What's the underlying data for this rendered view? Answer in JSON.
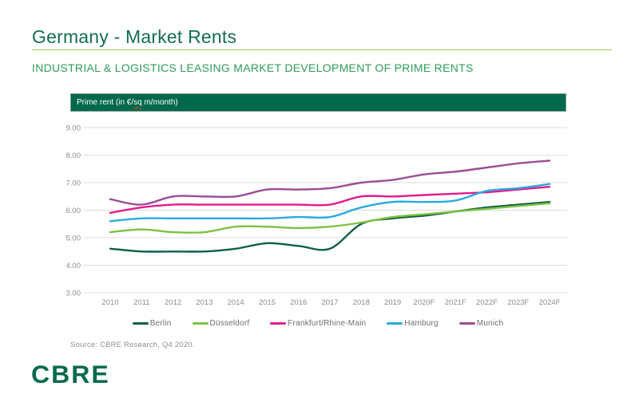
{
  "page": {
    "title": "Germany - Market Rents",
    "subtitle": "INDUSTRIAL & LOGISTICS LEASING MARKET DEVELOPMENT OF PRIME RENTS",
    "source": "Source: CBRE Research, Q4 2020.",
    "logo": "CBRE"
  },
  "chart_header": {
    "label_prefix": "Prime rent (in €/",
    "label_sq": "sq",
    "label_suffix": " m/month)"
  },
  "chart_data": {
    "type": "line",
    "title": "Prime rent (in €/sq m/month)",
    "x": [
      "2010",
      "2011",
      "2012",
      "2013",
      "2014",
      "2015",
      "2016",
      "2017",
      "2018",
      "2019",
      "2020F",
      "2021F",
      "2022F",
      "2023F",
      "2024F"
    ],
    "series": [
      {
        "name": "Berlin",
        "color": "#0e5f41",
        "values": [
          4.6,
          4.5,
          4.5,
          4.5,
          4.6,
          4.8,
          4.7,
          4.6,
          5.5,
          5.7,
          5.8,
          5.95,
          6.1,
          6.2,
          6.3
        ]
      },
      {
        "name": "Düsseldorf",
        "color": "#7cc242",
        "values": [
          5.2,
          5.3,
          5.2,
          5.2,
          5.4,
          5.4,
          5.35,
          5.4,
          5.55,
          5.75,
          5.85,
          5.95,
          6.05,
          6.15,
          6.25
        ]
      },
      {
        "name": "Frankfurt/Rhine-Main",
        "color": "#e41a8d",
        "values": [
          5.9,
          6.1,
          6.2,
          6.2,
          6.2,
          6.2,
          6.2,
          6.2,
          6.5,
          6.5,
          6.55,
          6.6,
          6.65,
          6.75,
          6.85
        ]
      },
      {
        "name": "Hamburg",
        "color": "#2aaade",
        "values": [
          5.6,
          5.7,
          5.7,
          5.7,
          5.7,
          5.7,
          5.75,
          5.75,
          6.1,
          6.3,
          6.3,
          6.35,
          6.7,
          6.8,
          6.95
        ]
      },
      {
        "name": "Munich",
        "color": "#9d4b97",
        "values": [
          6.4,
          6.2,
          6.5,
          6.5,
          6.5,
          6.75,
          6.75,
          6.8,
          7.0,
          7.1,
          7.3,
          7.4,
          7.55,
          7.7,
          7.8
        ]
      }
    ],
    "ylim": [
      3.0,
      9.0
    ],
    "ytick_labels": [
      "9.00",
      "8.00",
      "7.00",
      "6.00",
      "5.00",
      "4.00",
      "3.00"
    ],
    "grid": "horizontal-light-gray",
    "legend_position": "bottom",
    "smoothing": "spline"
  },
  "colors": {
    "title_green": "#136f4d",
    "subtitle_green": "#2f9c59",
    "rule_green": "#a3c94e",
    "header_bar_green": "#00684b",
    "grid_gray": "#dcdcdc",
    "axis_text_gray": "#8c8c8c",
    "legend_text_gray": "#6e6e6e",
    "logo_green": "#036a4c"
  }
}
